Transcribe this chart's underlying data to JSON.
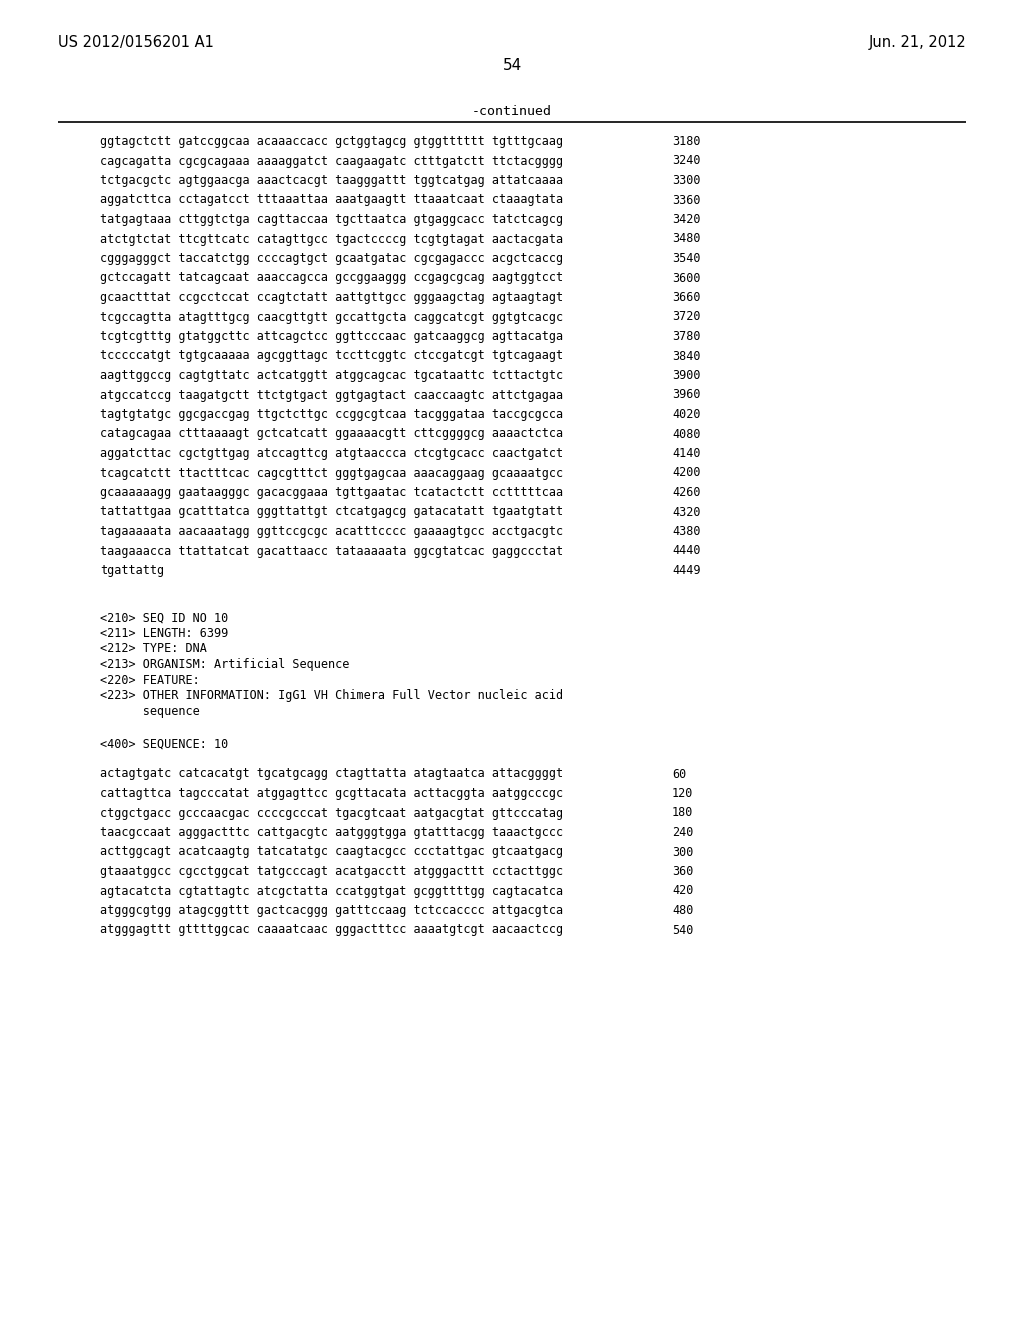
{
  "header_left": "US 2012/0156201 A1",
  "header_right": "Jun. 21, 2012",
  "page_number": "54",
  "continued_label": "-continued",
  "background_color": "#ffffff",
  "text_color": "#000000",
  "sequence_lines": [
    [
      "ggtagctctt gatccggcaa acaaaccacc gctggtagcg gtggtttttt tgtttgcaag",
      "3180"
    ],
    [
      "cagcagatta cgcgcagaaa aaaaggatct caagaagatc ctttgatctt ttctacgggg",
      "3240"
    ],
    [
      "tctgacgctc agtggaacga aaactcacgt taagggattt tggtcatgag attatcaaaa",
      "3300"
    ],
    [
      "aggatcttca cctagatcct tttaaattaa aaatgaagtt ttaaatcaat ctaaagtata",
      "3360"
    ],
    [
      "tatgagtaaa cttggtctga cagttaccaa tgcttaatca gtgaggcacc tatctcagcg",
      "3420"
    ],
    [
      "atctgtctat ttcgttcatc catagttgcc tgactccccg tcgtgtagat aactacgata",
      "3480"
    ],
    [
      "cgggagggct taccatctgg ccccagtgct gcaatgatac cgcgagaccc acgctcaccg",
      "3540"
    ],
    [
      "gctccagatt tatcagcaat aaaccagcca gccggaaggg ccgagcgcag aagtggtcct",
      "3600"
    ],
    [
      "gcaactttat ccgcctccat ccagtctatt aattgttgcc gggaagctag agtaagtagt",
      "3660"
    ],
    [
      "tcgccagtta atagtttgcg caacgttgtt gccattgcta caggcatcgt ggtgtcacgc",
      "3720"
    ],
    [
      "tcgtcgtttg gtatggcttc attcagctcc ggttcccaac gatcaaggcg agttacatga",
      "3780"
    ],
    [
      "tcccccatgt tgtgcaaaaa agcggttagc tccttcggtc ctccgatcgt tgtcagaagt",
      "3840"
    ],
    [
      "aagttggccg cagtgttatc actcatggtt atggcagcac tgcataattc tcttactgtc",
      "3900"
    ],
    [
      "atgccatccg taagatgctt ttctgtgact ggtgagtact caaccaagtc attctgagaa",
      "3960"
    ],
    [
      "tagtgtatgc ggcgaccgag ttgctcttgc ccggcgtcaa tacgggataa taccgcgcca",
      "4020"
    ],
    [
      "catagcagaa ctttaaaagt gctcatcatt ggaaaacgtt cttcggggcg aaaactctca",
      "4080"
    ],
    [
      "aggatcttac cgctgttgag atccagttcg atgtaaccca ctcgtgcacc caactgatct",
      "4140"
    ],
    [
      "tcagcatctt ttactttcac cagcgtttct gggtgagcaa aaacaggaag gcaaaatgcc",
      "4200"
    ],
    [
      "gcaaaaaagg gaataagggc gacacggaaa tgttgaatac tcatactctt cctttttcaa",
      "4260"
    ],
    [
      "tattattgaa gcatttatca gggttattgt ctcatgagcg gatacatatt tgaatgtatt",
      "4320"
    ],
    [
      "tagaaaaata aacaaatagg ggttccgcgc acatttcccc gaaaagtgcc acctgacgtc",
      "4380"
    ],
    [
      "taagaaacca ttattatcat gacattaacc tataaaaata ggcgtatcac gaggccctat",
      "4440"
    ],
    [
      "tgattattg",
      "4449"
    ]
  ],
  "metadata_lines": [
    "<210> SEQ ID NO 10",
    "<211> LENGTH: 6399",
    "<212> TYPE: DNA",
    "<213> ORGANISM: Artificial Sequence",
    "<220> FEATURE:",
    "<223> OTHER INFORMATION: IgG1 VH Chimera Full Vector nucleic acid",
    "      sequence"
  ],
  "sequence_label": "<400> SEQUENCE: 10",
  "bottom_sequence_lines": [
    [
      "actagtgatc catcacatgt tgcatgcagg ctagttatta atagtaatca attacggggt",
      "60"
    ],
    [
      "cattagttca tagcccatat atggagttcc gcgttacata acttacggta aatggcccgc",
      "120"
    ],
    [
      "ctggctgacc gcccaacgac ccccgcccat tgacgtcaat aatgacgtat gttcccatag",
      "180"
    ],
    [
      "taacgccaat agggactttc cattgacgtc aatgggtgga gtatttacgg taaactgccc",
      "240"
    ],
    [
      "acttggcagt acatcaagtg tatcatatgc caagtacgcc ccctattgac gtcaatgacg",
      "300"
    ],
    [
      "gtaaatggcc cgcctggcat tatgcccagt acatgacctt atgggacttt cctacttggc",
      "360"
    ],
    [
      "agtacatcta cgtattagtc atcgctatta ccatggtgat gcggttttgg cagtacatca",
      "420"
    ],
    [
      "atgggcgtgg atagcggttt gactcacggg gatttccaag tctccacccc attgacgtca",
      "480"
    ],
    [
      "atgggagttt gttttggcac caaaatcaac gggactttcc aaaatgtcgt aacaactccg",
      "540"
    ]
  ]
}
